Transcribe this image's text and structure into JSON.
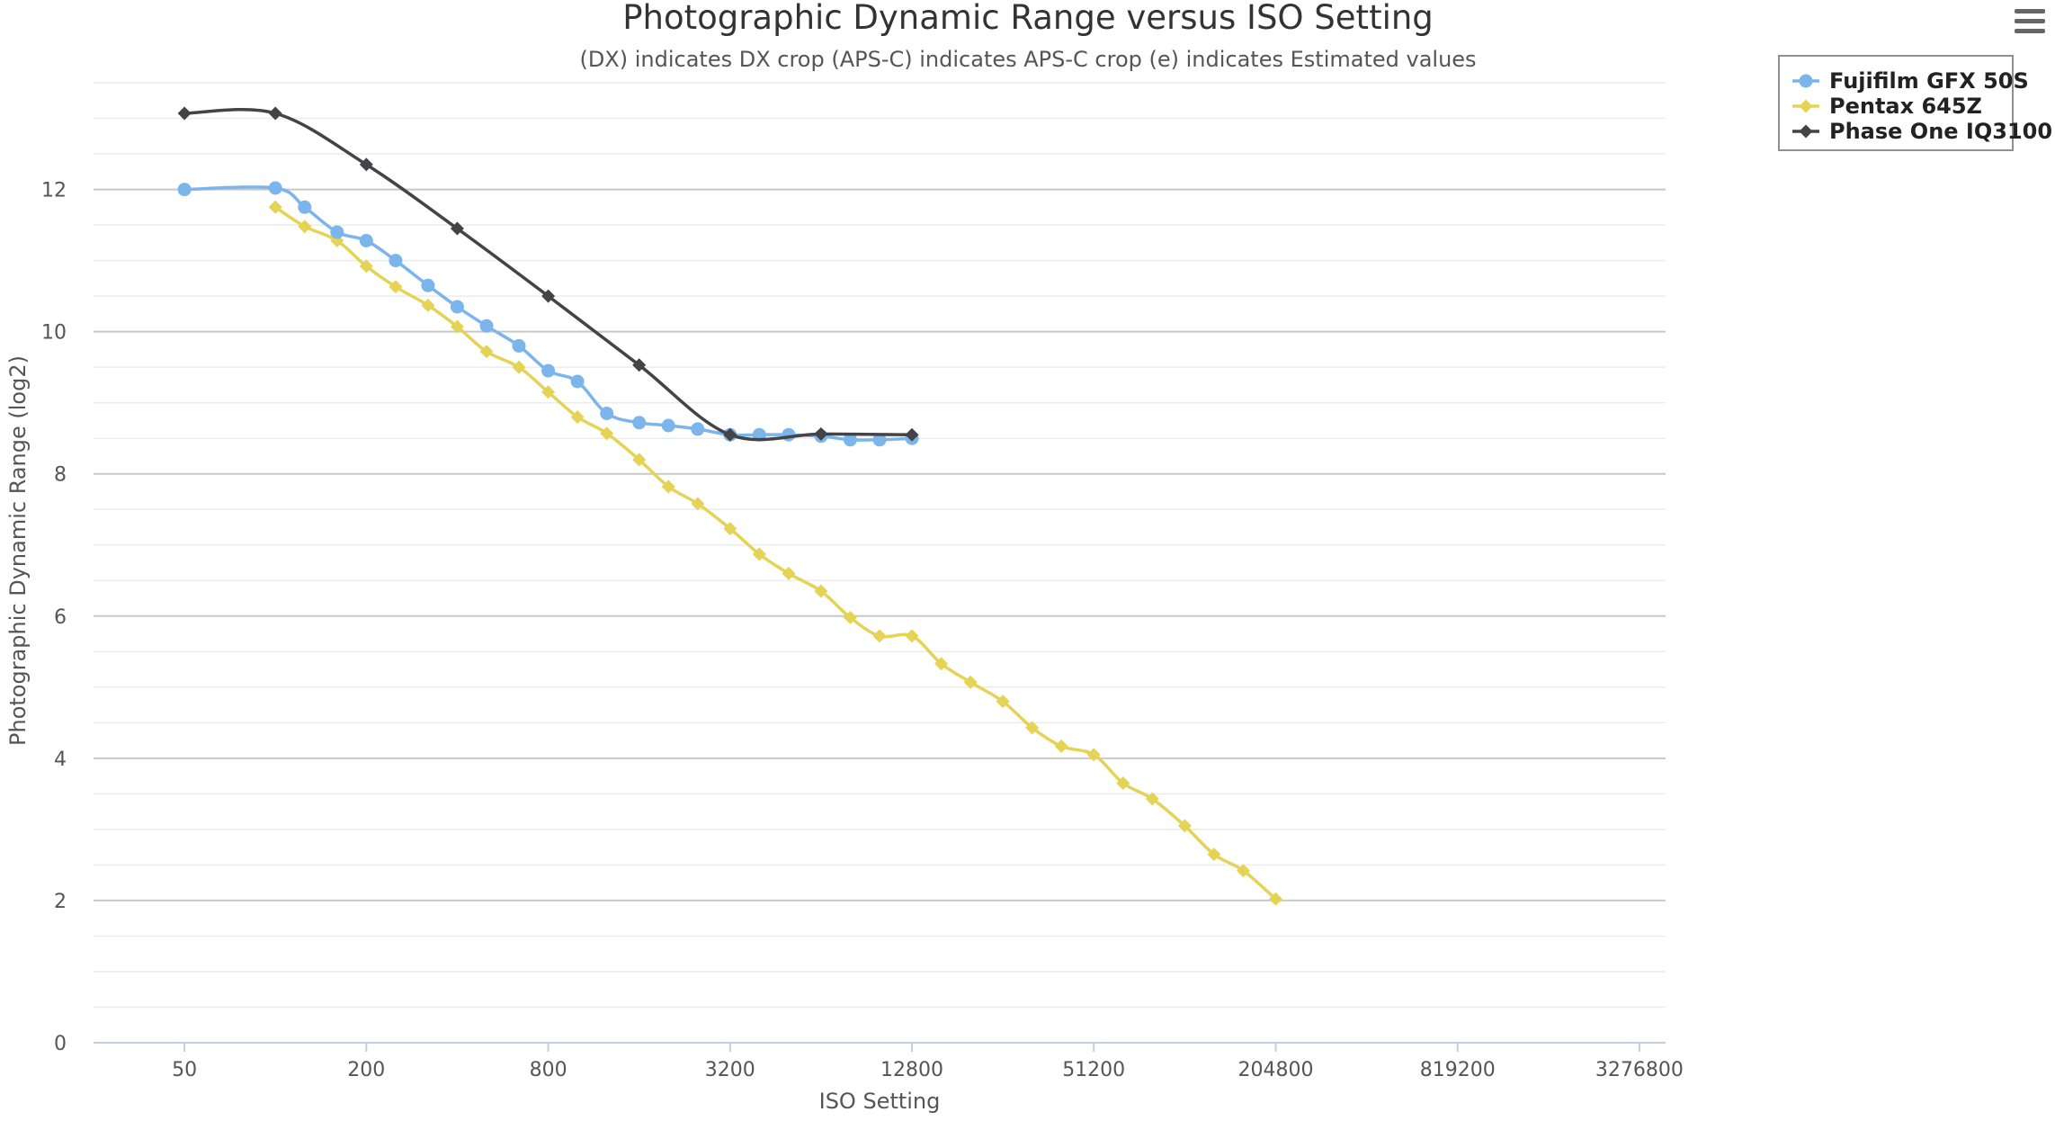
{
  "chart_data": {
    "type": "line",
    "title": "Photographic Dynamic Range versus ISO Setting",
    "subtitle": "(DX) indicates DX crop (APS-C) indicates APS-C crop (e) indicates Estimated values",
    "xlabel": "ISO Setting",
    "ylabel": "Photographic Dynamic Range (log2)",
    "xscale": "log2",
    "xlim": [
      25,
      4000000
    ],
    "ylim": [
      0,
      13.5
    ],
    "xticks": [
      50,
      200,
      800,
      3200,
      12800,
      51200,
      204800,
      819200,
      3276800
    ],
    "yticks": [
      0,
      2,
      4,
      6,
      8,
      10,
      12
    ],
    "grid": true,
    "legend_position": "top-right",
    "series": [
      {
        "name": "Fujifilm GFX 50S",
        "color": "#7cb5ec",
        "marker": "circle",
        "x": [
          50,
          100,
          125,
          160,
          200,
          250,
          320,
          400,
          500,
          640,
          800,
          1000,
          1250,
          1600,
          2000,
          2500,
          3200,
          4000,
          5000,
          6400,
          8000,
          10000,
          12800
        ],
        "y": [
          12.0,
          12.02,
          11.75,
          11.4,
          11.28,
          11.0,
          10.65,
          10.35,
          10.08,
          9.8,
          9.45,
          9.3,
          8.85,
          8.72,
          8.68,
          8.63,
          8.55,
          8.55,
          8.55,
          8.53,
          8.48,
          8.48,
          8.5
        ]
      },
      {
        "name": "Pentax 645Z",
        "color": "#e4d354",
        "marker": "diamond",
        "x": [
          100,
          125,
          160,
          200,
          250,
          320,
          400,
          500,
          640,
          800,
          1000,
          1250,
          1600,
          2000,
          2500,
          3200,
          4000,
          5000,
          6400,
          8000,
          10000,
          12800,
          16000,
          20000,
          25600,
          32000,
          40000,
          51200,
          64000,
          80000,
          102400,
          128000,
          160000,
          204800
        ],
        "y": [
          11.75,
          11.48,
          11.28,
          10.92,
          10.63,
          10.37,
          10.07,
          9.72,
          9.5,
          9.15,
          8.8,
          8.57,
          8.2,
          7.82,
          7.58,
          7.23,
          6.87,
          6.6,
          6.35,
          5.98,
          5.72,
          5.72,
          5.33,
          5.07,
          4.8,
          4.43,
          4.17,
          4.05,
          3.65,
          3.43,
          3.05,
          2.65,
          2.42,
          2.02
        ]
      },
      {
        "name": "Phase One IQ3100",
        "color": "#434348",
        "marker": "diamond",
        "x": [
          50,
          100,
          200,
          400,
          800,
          1600,
          3200,
          6400,
          12800
        ],
        "y": [
          13.07,
          13.07,
          12.35,
          11.45,
          10.5,
          9.53,
          8.55,
          8.56,
          8.55
        ]
      }
    ]
  },
  "menu": {
    "icon": "hamburger-menu-icon"
  }
}
